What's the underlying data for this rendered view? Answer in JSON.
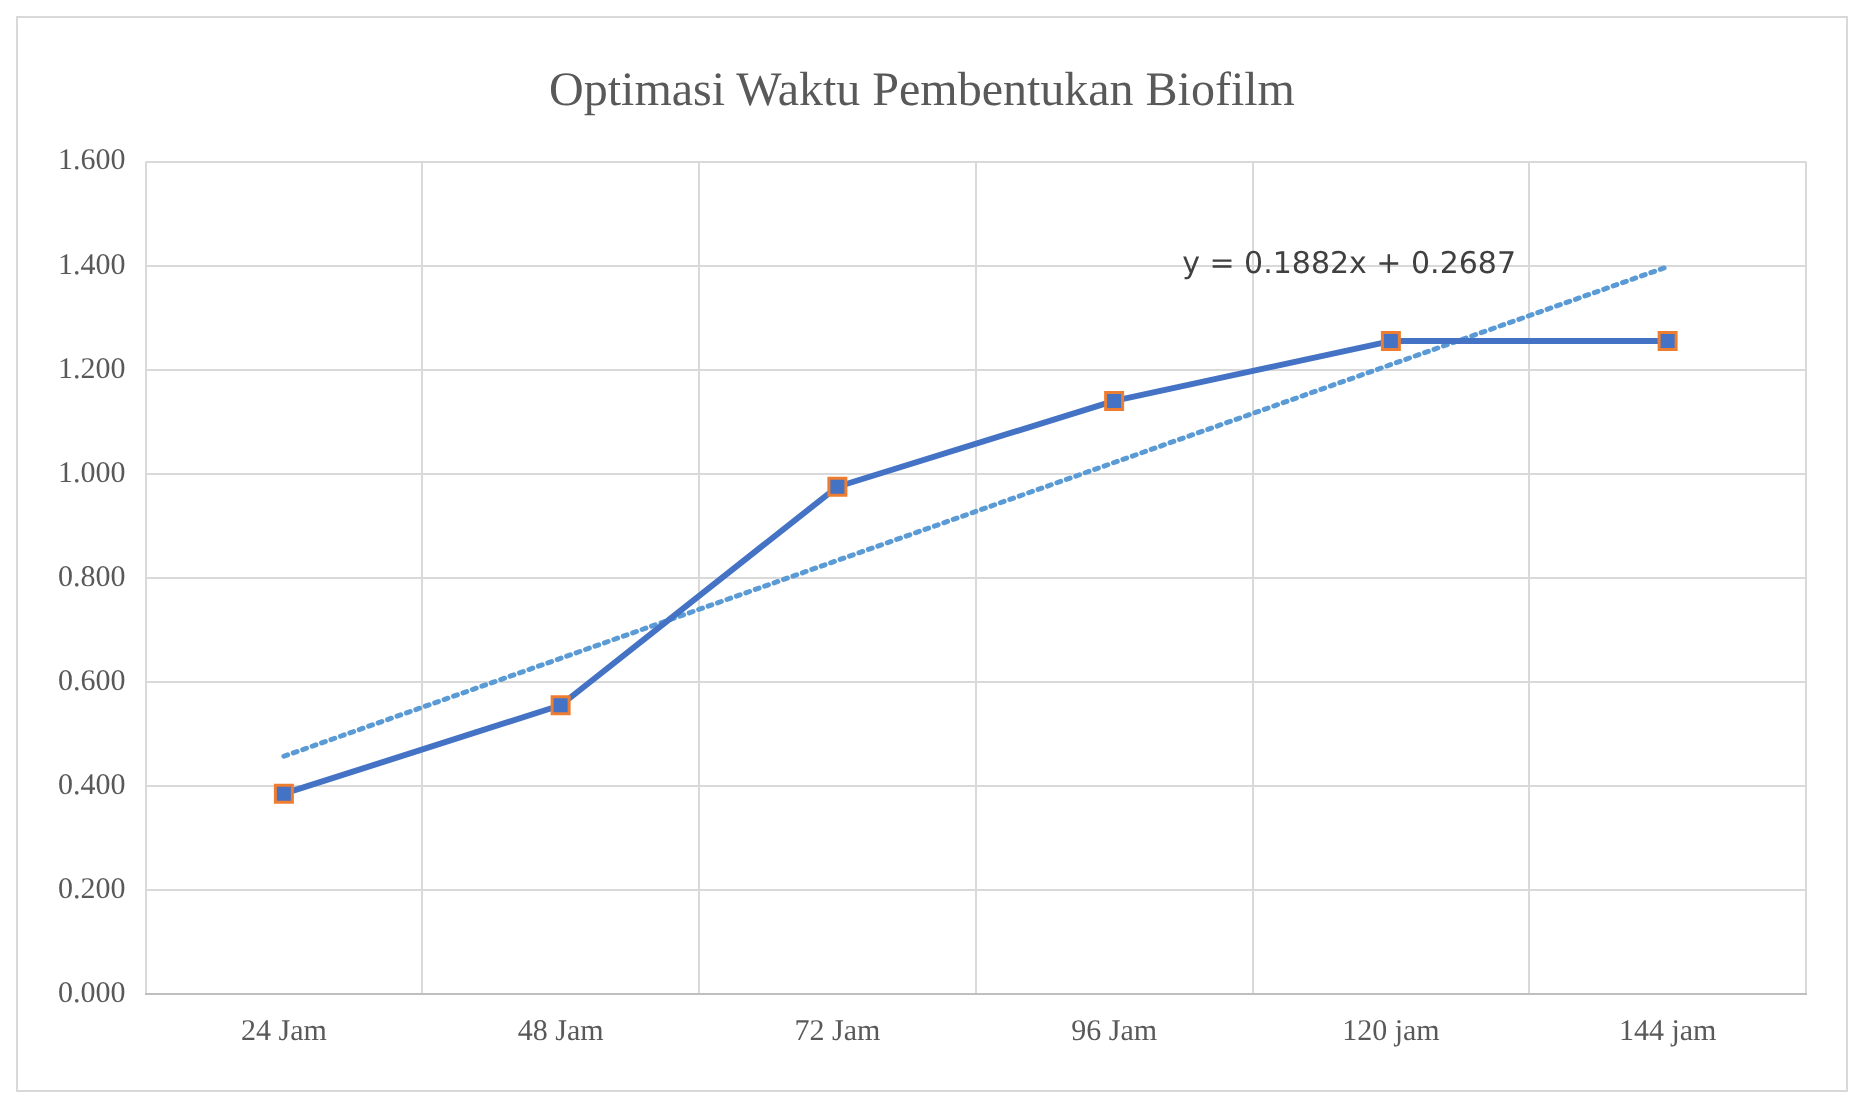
{
  "chart_data": {
    "type": "line",
    "title": "Optimasi Waktu Pembentukan Biofilm",
    "categories": [
      "24 Jam",
      "48 Jam",
      "72 Jam",
      "96 Jam",
      "120 jam",
      "144 jam"
    ],
    "series": [
      {
        "color": "#4472c4",
        "values": [
          0.385,
          0.555,
          0.975,
          1.14,
          1.255,
          1.255
        ],
        "marker": "square",
        "line_style": "solid"
      },
      {
        "type": "line",
        "color": "#5b9bd5",
        "x": [
          "24 Jam",
          "144 jam"
        ],
        "values": [
          0.457,
          1.398
        ],
        "marker": "none",
        "line_style": "dotted"
      }
    ],
    "ylim": [
      0,
      1.6
    ],
    "yticks": [
      {
        "value": 0,
        "label": "0.000"
      },
      {
        "value": 0.2,
        "label": "0.200"
      },
      {
        "value": 0.4,
        "label": "0.400"
      },
      {
        "value": 0.6,
        "label": "0.600"
      },
      {
        "value": 0.8,
        "label": "0.800"
      },
      {
        "value": 1,
        "label": "1.000"
      },
      {
        "value": 1.2,
        "label": "1.200"
      },
      {
        "value": 1.4,
        "label": "1.400"
      },
      {
        "value": 1.6,
        "label": "1.600"
      }
    ],
    "grid": true,
    "legend": false,
    "annotations": [
      "y = 0.1882x + 0.2687"
    ]
  }
}
